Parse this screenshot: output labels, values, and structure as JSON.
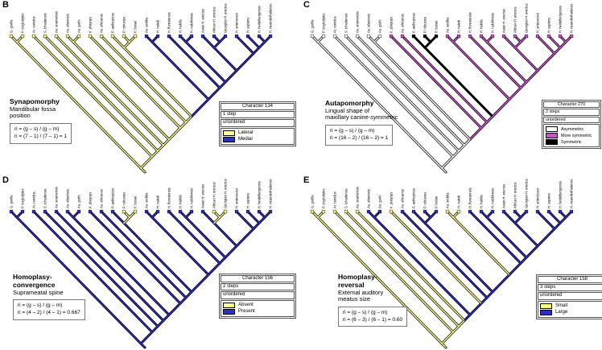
{
  "taxa": [
    "G. gorilla",
    "P. troglodytes",
    "Ar. ramidus",
    "S. tchadensis",
    "Au. anamensis",
    "Au. afarensis",
    "Au. garhi",
    "K. platyops",
    "Au. africanus",
    "P. aethiopicus",
    "P. robustus",
    "P. boisei",
    "Au. sediba",
    "H. naledi",
    "H. floresiensis",
    "H. habilis",
    "H. rudolfensis",
    "Asian H. erectus",
    "African H. erectus",
    "Georgian H. erectus",
    "H. antecessor",
    "H. sapiens",
    "H. heidelbergensis",
    "H. neanderthalensis"
  ],
  "topology": [
    [
      0,
      1
    ],
    [
      2,
      [
        3,
        [
          4,
          [
            [
              5,
              6
            ],
            [
              7,
              [
                8,
                [
                  [
                    9,
                    [
                      10,
                      11
                    ]
                  ],
                  [
                    [
                      12,
                      13
                    ],
                    [
                      14,
                      [
                        [
                          15,
                          16
                        ],
                        [
                          [
                            17,
                            [
                              18,
                              19
                            ]
                          ],
                          [
                            20,
                            [
                              21,
                              [
                                22,
                                23
                              ]
                            ]
                          ]
                        ]
                      ]
                    ]
                  ]
                ]
              ]
            ]
          ]
        ]
      ]
    ]
  ],
  "panels": [
    {
      "letter": "B",
      "title_line1": "Synapomorphy",
      "sub_line1": "Mandibular fossa",
      "sub_line2": "position",
      "formula_line1": "ri = (g – s) / (g – m)",
      "formula_line2": "ri = (7 – 1) / (7 – 1) = 1",
      "legend": {
        "header": "Character 134",
        "steps": "1 step",
        "order": "unordered",
        "states": [
          {
            "label": "Lateral",
            "color": "#ffff88"
          },
          {
            "label": "Medial",
            "color": "#2d2dc8"
          }
        ]
      },
      "state_colors": [
        "#ffff88",
        "#2d2dc8"
      ],
      "tip_states": [
        0,
        0,
        0,
        0,
        0,
        0,
        0,
        0,
        0,
        0,
        0,
        0,
        1,
        1,
        1,
        1,
        1,
        1,
        1,
        1,
        1,
        1,
        1,
        1
      ],
      "node_states": [
        0,
        0,
        0,
        0,
        0,
        0,
        0,
        0,
        0,
        0,
        0,
        0,
        1,
        1,
        1,
        1,
        1,
        1,
        1,
        1,
        1,
        1,
        1
      ]
    },
    {
      "letter": "C",
      "title_line1": "Autapomorphy",
      "sub_line1": "Lingual shape of",
      "sub_line2": "maxillary canine-",
      "sub_italic": "symmetric",
      "formula_line1": "ri = (g – s) / (g – m)",
      "formula_line2": "ri = (16 – 2) / (16 – 2) = 1",
      "legend": {
        "header": "Character 270",
        "steps": "2 steps",
        "order": "unordered",
        "states": [
          {
            "label": "Asymmetric",
            "color": "#ffffff"
          },
          {
            "label": "More symmetric",
            "color": "#c853c8"
          },
          {
            "label": "Symmetric",
            "color": "#000000"
          }
        ]
      },
      "state_colors": [
        "#ffffff",
        "#c853c8",
        "#000000"
      ],
      "tip_states": [
        0,
        0,
        0,
        0,
        0,
        0,
        0,
        1,
        1,
        2,
        2,
        2,
        1,
        1,
        1,
        1,
        1,
        1,
        1,
        1,
        1,
        1,
        1,
        1
      ],
      "node_states": [
        0,
        0,
        0,
        0,
        0,
        0,
        0,
        1,
        1,
        1,
        2,
        2,
        1,
        1,
        1,
        1,
        1,
        1,
        1,
        1,
        1,
        1,
        1
      ]
    },
    {
      "letter": "D",
      "title_line1": "Homoplasy-",
      "title_line2": "convergence",
      "sub_line1": "Suprameatal spine",
      "formula_line1": "ri = (g – s) / (g – m)",
      "formula_line2": "ri = (4 – 2) / (4 – 1) = 0.667",
      "legend": {
        "header": "Character 156",
        "steps": "2 steps",
        "order": "unordered",
        "states": [
          {
            "label": "Absent",
            "color": "#ffff88"
          },
          {
            "label": "Present",
            "color": "#2d2dc8"
          }
        ]
      },
      "state_colors": [
        "#ffff88",
        "#2d2dc8"
      ],
      "tip_states": [
        1,
        1,
        1,
        1,
        1,
        1,
        1,
        1,
        1,
        1,
        0,
        0,
        1,
        1,
        1,
        1,
        1,
        1,
        0,
        0,
        1,
        1,
        1,
        1
      ],
      "node_states": [
        1,
        1,
        1,
        1,
        1,
        1,
        1,
        1,
        1,
        1,
        1,
        0,
        1,
        1,
        1,
        1,
        1,
        1,
        1,
        0,
        1,
        1,
        1
      ]
    },
    {
      "letter": "E",
      "title_line1": "Homoplasy-",
      "title_line2": "reversal",
      "sub_line1": "External auditory",
      "sub_line2": "meatus size",
      "formula_line1": "ri = (g – s) / (g – m)",
      "formula_line2": "ri = (6 – 3) / (6 – 1) = 0.60",
      "legend": {
        "header": "Character 158",
        "steps": "3 steps",
        "order": "unordered",
        "states": [
          {
            "label": "Small",
            "color": "#ffff88"
          },
          {
            "label": "Large",
            "color": "#2d2dc8"
          }
        ]
      },
      "state_colors": [
        "#ffff88",
        "#2d2dc8"
      ],
      "tip_states": [
        0,
        0,
        0,
        0,
        0,
        1,
        1,
        0,
        1,
        1,
        1,
        1,
        0,
        0,
        1,
        1,
        1,
        1,
        1,
        1,
        1,
        1,
        1,
        1
      ],
      "node_states": [
        0,
        0,
        0,
        0,
        0,
        1,
        1,
        1,
        1,
        1,
        1,
        1,
        1,
        0,
        1,
        1,
        1,
        1,
        1,
        1,
        1,
        1,
        1
      ]
    }
  ]
}
